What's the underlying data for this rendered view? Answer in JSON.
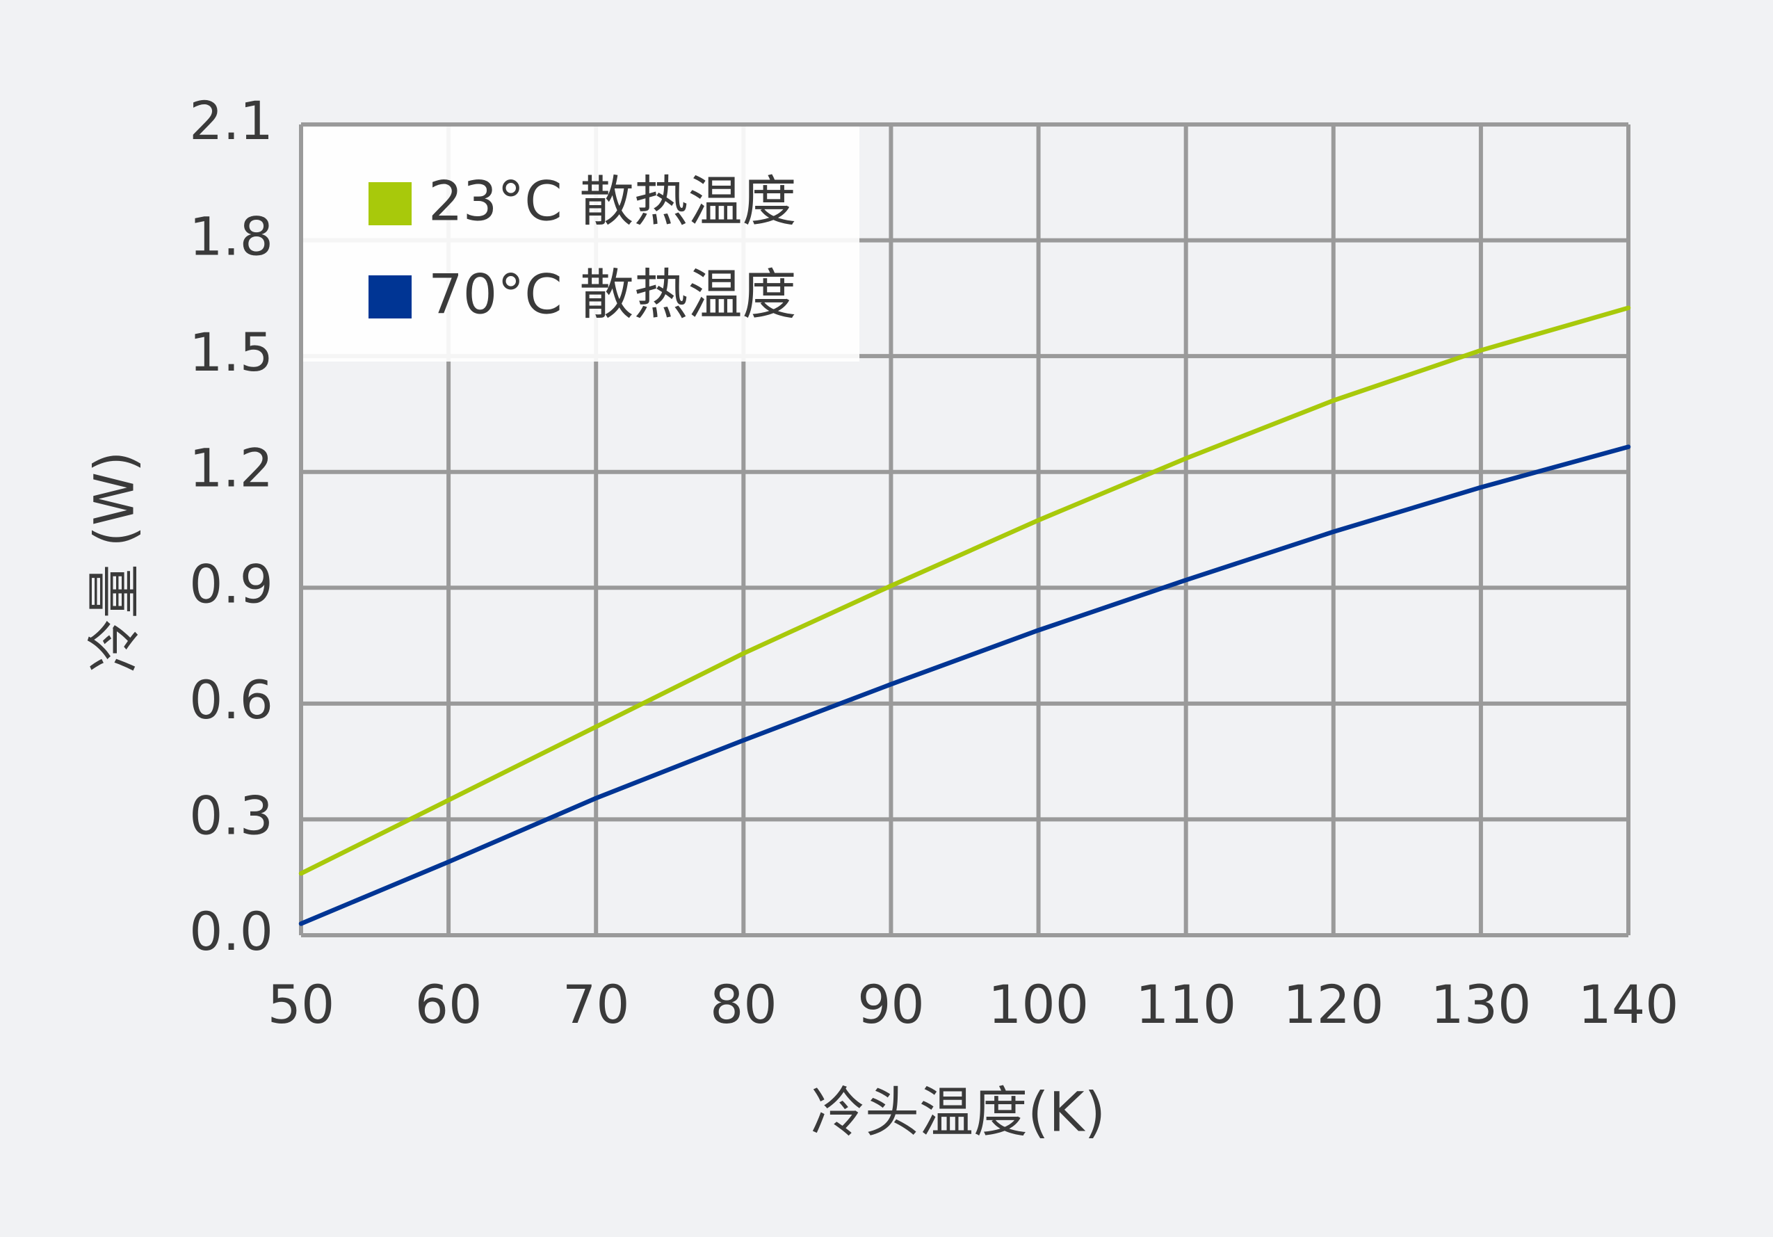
{
  "chart_data": {
    "type": "line",
    "xlabel": "冷头温度(K)",
    "ylabel": "冷量 (W)",
    "x": [
      50,
      60,
      70,
      80,
      90,
      100,
      110,
      120,
      130,
      140
    ],
    "series": [
      {
        "name": "23°C 散热温度",
        "color": "#a8c90b",
        "values": [
          0.16,
          0.35,
          0.54,
          0.73,
          0.905,
          1.075,
          1.235,
          1.385,
          1.515,
          1.625
        ]
      },
      {
        "name": "70°C 散热温度",
        "color": "#003594",
        "values": [
          0.03,
          0.19,
          0.355,
          0.505,
          0.65,
          0.79,
          0.92,
          1.045,
          1.16,
          1.265
        ]
      }
    ],
    "xlim": [
      50,
      140
    ],
    "xticks": [
      50,
      60,
      70,
      80,
      90,
      100,
      110,
      120,
      130,
      140
    ],
    "ylim": [
      0,
      2.1
    ],
    "yticks": [
      {
        "value": 0,
        "label": "0.0"
      },
      0.3,
      0.6,
      0.9,
      1.2,
      1.5,
      1.8,
      2.1
    ],
    "grid": true,
    "legend": "upper left"
  }
}
